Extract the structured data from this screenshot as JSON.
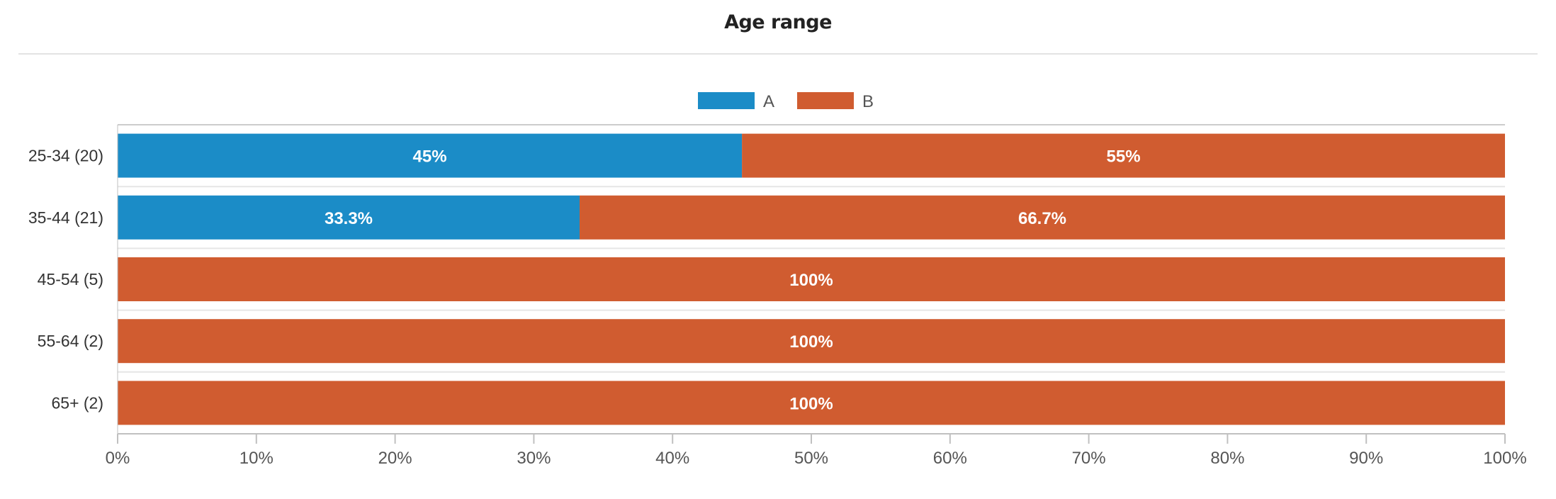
{
  "chart_data": {
    "type": "bar",
    "orientation": "horizontal",
    "stacked": true,
    "title": "Age range",
    "categories": [
      "25-34 (20)",
      "35-44 (21)",
      "45-54 (5)",
      "55-64 (2)",
      "65+ (2)"
    ],
    "series": [
      {
        "name": "A",
        "color": "#1b8cc7",
        "values": [
          45,
          33.3,
          0,
          0,
          0
        ],
        "labels": [
          "45%",
          "33.3%",
          "",
          "",
          ""
        ]
      },
      {
        "name": "B",
        "color": "#d05c30",
        "values": [
          55,
          66.7,
          100,
          100,
          100
        ],
        "labels": [
          "55%",
          "66.7%",
          "100%",
          "100%",
          "100%"
        ]
      }
    ],
    "xlim": [
      0,
      100
    ],
    "xticks": [
      "0%",
      "10%",
      "20%",
      "30%",
      "40%",
      "50%",
      "60%",
      "70%",
      "80%",
      "90%",
      "100%"
    ],
    "legend": "top-center",
    "grid": "horizontal-row-separators"
  }
}
